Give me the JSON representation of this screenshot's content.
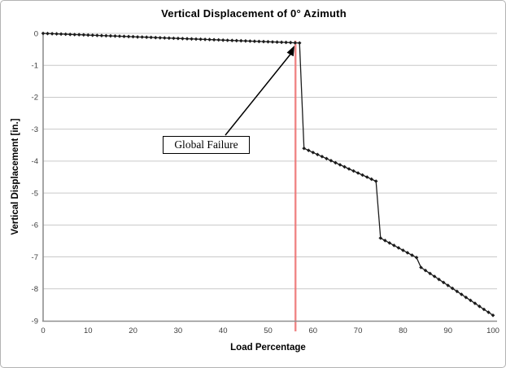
{
  "chart_data": {
    "type": "line",
    "title": "Vertical Displacement of 0° Azimuth",
    "xlabel": "Load Percentage",
    "ylabel": "Vertical Displacement [in.]",
    "xlim": [
      0,
      100
    ],
    "ylim": [
      -9,
      0
    ],
    "x_ticks": [
      0,
      10,
      20,
      30,
      40,
      50,
      60,
      70,
      80,
      90,
      100
    ],
    "y_ticks": [
      0,
      -1,
      -2,
      -3,
      -4,
      -5,
      -6,
      -7,
      -8,
      -9
    ],
    "grid": "horizontal",
    "legend": "none",
    "marker": "diamond",
    "line_color": "#1c1c1c",
    "grid_color": "#c9c9c9",
    "axis_color": "#8f8f8f",
    "tick_label_color": "#3d3d3d",
    "failure_line_x": 56.1,
    "failure_line_color": "#ee7272",
    "annotation": {
      "text": "Global Failure",
      "arrow_to": [
        57,
        -0.3
      ]
    },
    "x": [
      0,
      1,
      2,
      3,
      4,
      5,
      6,
      7,
      8,
      9,
      10,
      11,
      12,
      13,
      14,
      15,
      16,
      17,
      18,
      19,
      20,
      21,
      22,
      23,
      24,
      25,
      26,
      27,
      28,
      29,
      30,
      31,
      32,
      33,
      34,
      35,
      36,
      37,
      38,
      39,
      40,
      41,
      42,
      43,
      44,
      45,
      46,
      47,
      48,
      49,
      50,
      51,
      52,
      53,
      54,
      55,
      56,
      57,
      58,
      59,
      60,
      61,
      62,
      63,
      64,
      65,
      66,
      67,
      68,
      69,
      70,
      71,
      72,
      73,
      74,
      75,
      76,
      77,
      78,
      79,
      80,
      81,
      82,
      83,
      84,
      85,
      86,
      87,
      88,
      89,
      90,
      91,
      92,
      93,
      94,
      95,
      96,
      97,
      98,
      99,
      100
    ],
    "y": [
      0,
      -0.005,
      -0.011,
      -0.016,
      -0.021,
      -0.026,
      -0.032,
      -0.037,
      -0.042,
      -0.047,
      -0.053,
      -0.058,
      -0.063,
      -0.068,
      -0.074,
      -0.079,
      -0.084,
      -0.089,
      -0.095,
      -0.1,
      -0.105,
      -0.111,
      -0.116,
      -0.121,
      -0.126,
      -0.132,
      -0.137,
      -0.142,
      -0.147,
      -0.153,
      -0.158,
      -0.163,
      -0.168,
      -0.174,
      -0.179,
      -0.184,
      -0.189,
      -0.195,
      -0.2,
      -0.205,
      -0.211,
      -0.216,
      -0.221,
      -0.226,
      -0.232,
      -0.237,
      -0.242,
      -0.247,
      -0.253,
      -0.258,
      -0.263,
      -0.268,
      -0.274,
      -0.279,
      -0.284,
      -0.289,
      -0.295,
      -0.3,
      -3.6,
      -3.664,
      -3.729,
      -3.793,
      -3.858,
      -3.922,
      -3.986,
      -4.051,
      -4.115,
      -4.18,
      -4.244,
      -4.308,
      -4.373,
      -4.437,
      -4.501,
      -4.566,
      -4.63,
      -6.41,
      -6.486,
      -6.563,
      -6.639,
      -6.715,
      -6.791,
      -6.868,
      -6.944,
      -7.02,
      -7.33,
      -7.424,
      -7.518,
      -7.611,
      -7.705,
      -7.799,
      -7.893,
      -7.986,
      -8.08,
      -8.174,
      -8.268,
      -8.361,
      -8.455,
      -8.549,
      -8.643,
      -8.736,
      -8.83
    ]
  }
}
